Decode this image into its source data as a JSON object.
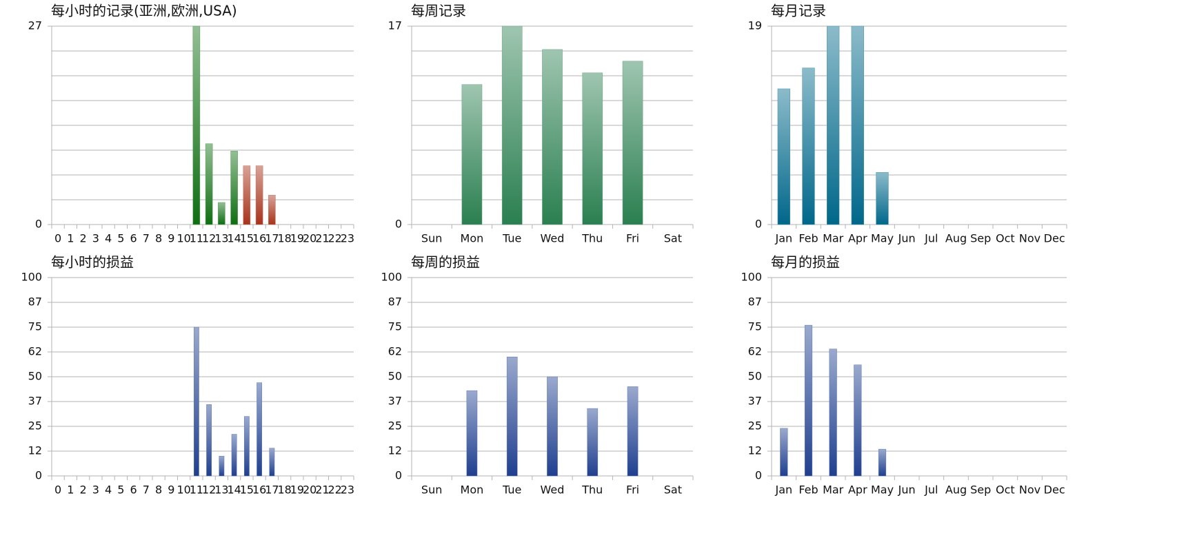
{
  "chart_data": [
    {
      "type": "bar",
      "title": "每小时的记录(亚洲,欧洲,USA)",
      "categories": [
        "0",
        "1",
        "2",
        "3",
        "4",
        "5",
        "6",
        "7",
        "8",
        "9",
        "10",
        "11",
        "12",
        "13",
        "14",
        "15",
        "16",
        "17",
        "18",
        "19",
        "20",
        "21",
        "22",
        "23"
      ],
      "values": [
        0,
        0,
        0,
        0,
        0,
        0,
        0,
        0,
        0,
        0,
        0,
        27,
        11,
        3,
        10,
        8,
        8,
        4,
        0,
        0,
        0,
        0,
        0,
        0
      ],
      "colors": [
        "#0f6e12",
        "#0f6e12",
        "#0f6e12",
        "#0f6e12",
        "#0f6e12",
        "#0f6e12",
        "#0f6e12",
        "#0f6e12",
        "#0f6e12",
        "#0f6e12",
        "#0f6e12",
        "#0f6e12",
        "#0f6e12",
        "#0f6e12",
        "#0f6e12",
        "#a8331a",
        "#a8331a",
        "#a8331a",
        "#0f6e12",
        "#0f6e12",
        "#0f6e12",
        "#0f6e12",
        "#0f6e12",
        "#0f6e12"
      ],
      "ylim": [
        0,
        27
      ],
      "yticks": [
        0,
        27
      ],
      "grid": true,
      "grid_divisions": 8
    },
    {
      "type": "bar",
      "title": "每周记录",
      "categories": [
        "Sun",
        "Mon",
        "Tue",
        "Wed",
        "Thu",
        "Fri",
        "Sat"
      ],
      "values": [
        0,
        12,
        17,
        15,
        13,
        14,
        0
      ],
      "color": "#2a7f50",
      "ylim": [
        0,
        17
      ],
      "yticks": [
        0,
        17
      ],
      "grid": true,
      "grid_divisions": 8
    },
    {
      "type": "bar",
      "title": "每月记录",
      "categories": [
        "Jan",
        "Feb",
        "Mar",
        "Apr",
        "May",
        "Jun",
        "Jul",
        "Aug",
        "Sep",
        "Oct",
        "Nov",
        "Dec"
      ],
      "values": [
        13,
        15,
        19,
        19,
        5,
        0,
        0,
        0,
        0,
        0,
        0,
        0
      ],
      "color": "#00678a",
      "ylim": [
        0,
        19
      ],
      "yticks": [
        0,
        19
      ],
      "grid": true,
      "grid_divisions": 8
    },
    {
      "type": "bar",
      "title": "每小时的损益",
      "categories": [
        "0",
        "1",
        "2",
        "3",
        "4",
        "5",
        "6",
        "7",
        "8",
        "9",
        "10",
        "11",
        "12",
        "13",
        "14",
        "15",
        "16",
        "17",
        "18",
        "19",
        "20",
        "21",
        "22",
        "23"
      ],
      "values": [
        0,
        0,
        0,
        0,
        0,
        0,
        0,
        0,
        0,
        0,
        0,
        75,
        36,
        10,
        21,
        30,
        47,
        14,
        0,
        0,
        0,
        0,
        0,
        0
      ],
      "color": "#1f3f8f",
      "ylim": [
        0,
        100
      ],
      "yticks": [
        0,
        {
          "value": 12.5,
          "label": "12"
        },
        25,
        {
          "value": 37.5,
          "label": "37"
        },
        50,
        {
          "value": 62.5,
          "label": "62"
        },
        75,
        {
          "value": 87.5,
          "label": "87"
        },
        100
      ],
      "grid": true,
      "grid_divisions": 8
    },
    {
      "type": "bar",
      "title": "每周的损益",
      "categories": [
        "Sun",
        "Mon",
        "Tue",
        "Wed",
        "Thu",
        "Fri",
        "Sat"
      ],
      "values": [
        0,
        43,
        60,
        50,
        34,
        45,
        0
      ],
      "color": "#1f3f8f",
      "ylim": [
        0,
        100
      ],
      "yticks": [
        0,
        {
          "value": 12.5,
          "label": "12"
        },
        25,
        {
          "value": 37.5,
          "label": "37"
        },
        50,
        {
          "value": 62.5,
          "label": "62"
        },
        75,
        {
          "value": 87.5,
          "label": "87"
        },
        100
      ],
      "grid": true,
      "grid_divisions": 8
    },
    {
      "type": "bar",
      "title": "每月的损益",
      "categories": [
        "Jan",
        "Feb",
        "Mar",
        "Apr",
        "May",
        "Jun",
        "Jul",
        "Aug",
        "Sep",
        "Oct",
        "Nov",
        "Dec"
      ],
      "values": [
        24,
        76,
        64,
        56,
        13.5,
        0,
        0,
        0,
        0,
        0,
        0,
        0
      ],
      "color": "#1f3f8f",
      "ylim": [
        0,
        100
      ],
      "yticks": [
        0,
        {
          "value": 12.5,
          "label": "12"
        },
        25,
        {
          "value": 37.5,
          "label": "37"
        },
        50,
        {
          "value": 62.5,
          "label": "62"
        },
        75,
        {
          "value": 87.5,
          "label": "87"
        },
        100
      ],
      "grid": true,
      "grid_divisions": 8
    }
  ]
}
